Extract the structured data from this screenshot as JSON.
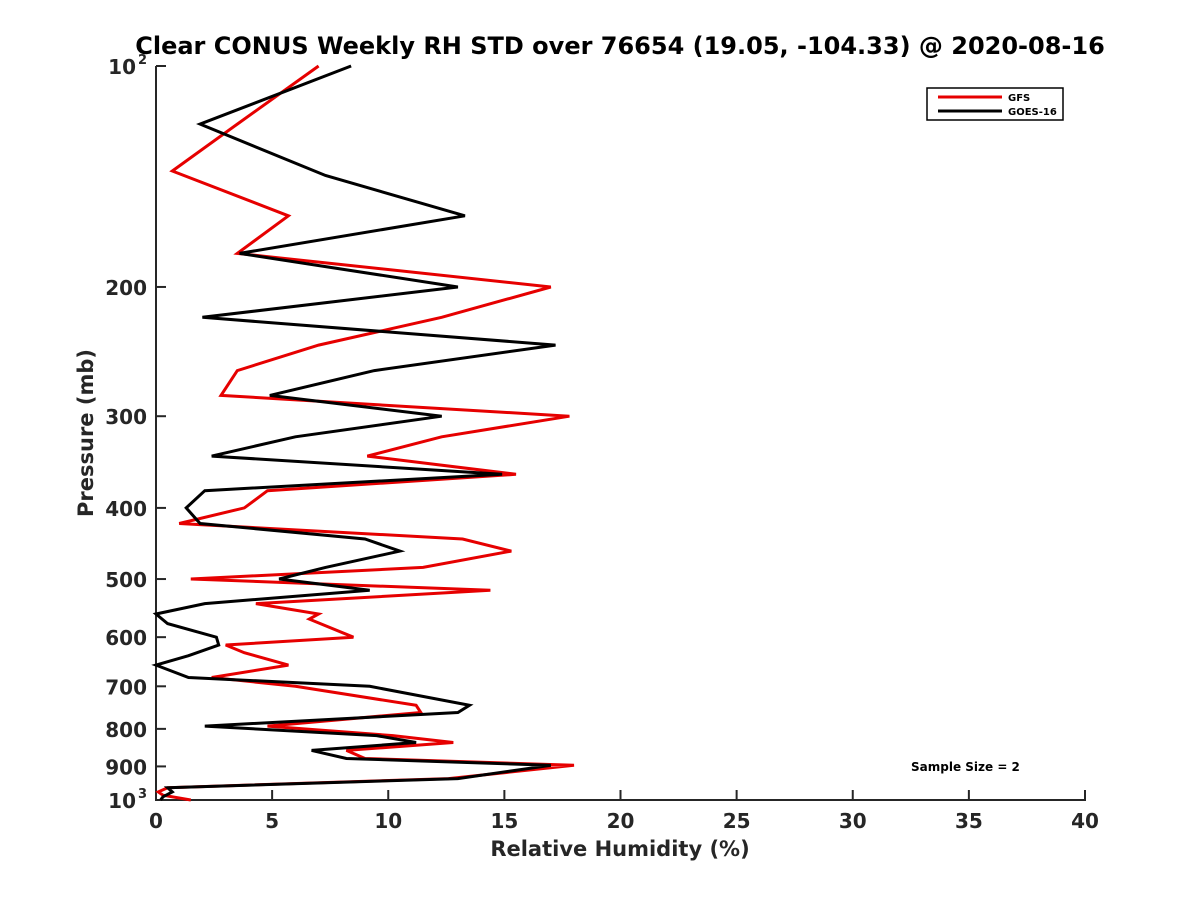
{
  "chart_data": {
    "type": "line",
    "title": "Clear CONUS Weekly RH STD over 76654 (19.05, -104.33) @ 2020-08-16",
    "xlabel": "Relative Humidity (%)",
    "ylabel": "Pressure (mb)",
    "xlim": [
      0,
      40
    ],
    "ylim": [
      100,
      1000
    ],
    "yscale": "log",
    "yreversed": true,
    "grid": false,
    "legend_position": "top-right",
    "x_ticks": [
      0,
      5,
      10,
      15,
      20,
      25,
      30,
      35,
      40
    ],
    "x_tick_labels": [
      "0",
      "5",
      "10",
      "15",
      "20",
      "25",
      "30",
      "35",
      "40"
    ],
    "y_ticks": [
      100,
      200,
      300,
      400,
      500,
      600,
      700,
      800,
      900,
      1000
    ],
    "y_tick_labels": [
      {
        "base": "10",
        "exp": "2"
      },
      {
        "base": "200",
        "exp": ""
      },
      {
        "base": "300",
        "exp": ""
      },
      {
        "base": "400",
        "exp": ""
      },
      {
        "base": "500",
        "exp": ""
      },
      {
        "base": "600",
        "exp": ""
      },
      {
        "base": "700",
        "exp": ""
      },
      {
        "base": "800",
        "exp": ""
      },
      {
        "base": "900",
        "exp": ""
      },
      {
        "base": "10",
        "exp": "3"
      }
    ],
    "annotation": "Sample Size = 2",
    "series": [
      {
        "name": "GFS",
        "color": "#e60000",
        "points": [
          [
            7.0,
            100
          ],
          [
            3.5,
            120
          ],
          [
            0.7,
            139
          ],
          [
            5.7,
            160
          ],
          [
            3.5,
            180
          ],
          [
            17.0,
            200
          ],
          [
            12.3,
            220
          ],
          [
            7.0,
            240
          ],
          [
            3.5,
            260
          ],
          [
            2.8,
            281
          ],
          [
            17.8,
            300
          ],
          [
            12.3,
            320
          ],
          [
            9.1,
            340
          ],
          [
            15.5,
            360
          ],
          [
            4.8,
            379
          ],
          [
            3.8,
            400
          ],
          [
            1.0,
            420
          ],
          [
            13.2,
            441
          ],
          [
            15.3,
            458
          ],
          [
            11.5,
            482
          ],
          [
            1.5,
            500
          ],
          [
            14.4,
            518
          ],
          [
            4.3,
            540
          ],
          [
            7.0,
            558
          ],
          [
            6.6,
            567
          ],
          [
            8.5,
            600
          ],
          [
            3.0,
            615
          ],
          [
            3.8,
            630
          ],
          [
            5.7,
            655
          ],
          [
            2.4,
            681
          ],
          [
            6.0,
            700
          ],
          [
            11.2,
            743
          ],
          [
            11.4,
            760
          ],
          [
            4.8,
            793
          ],
          [
            10.2,
            817
          ],
          [
            12.8,
            835
          ],
          [
            8.2,
            856
          ],
          [
            9.0,
            878
          ],
          [
            18.0,
            897
          ],
          [
            12.6,
            935
          ],
          [
            0.5,
            962
          ],
          [
            0.1,
            975
          ],
          [
            0.3,
            985
          ],
          [
            1.5,
            1000
          ]
        ]
      },
      {
        "name": "GOES-16",
        "color": "#000000",
        "points": [
          [
            8.4,
            100
          ],
          [
            1.9,
            120
          ],
          [
            7.3,
            141
          ],
          [
            13.3,
            160
          ],
          [
            3.6,
            180
          ],
          [
            13.0,
            200
          ],
          [
            2.0,
            220
          ],
          [
            17.2,
            240
          ],
          [
            9.4,
            260
          ],
          [
            4.9,
            281
          ],
          [
            12.3,
            300
          ],
          [
            6.0,
            320
          ],
          [
            2.4,
            340
          ],
          [
            14.9,
            360
          ],
          [
            2.1,
            379
          ],
          [
            1.3,
            400
          ],
          [
            1.9,
            420
          ],
          [
            9.0,
            441
          ],
          [
            10.5,
            458
          ],
          [
            7.3,
            482
          ],
          [
            5.3,
            500
          ],
          [
            9.2,
            518
          ],
          [
            2.1,
            540
          ],
          [
            0.0,
            558
          ],
          [
            0.5,
            575
          ],
          [
            2.6,
            600
          ],
          [
            2.7,
            615
          ],
          [
            1.4,
            636
          ],
          [
            0.0,
            655
          ],
          [
            1.4,
            681
          ],
          [
            9.2,
            700
          ],
          [
            13.5,
            743
          ],
          [
            13.0,
            760
          ],
          [
            2.1,
            793
          ],
          [
            9.5,
            817
          ],
          [
            11.2,
            835
          ],
          [
            6.7,
            856
          ],
          [
            8.2,
            878
          ],
          [
            17.0,
            897
          ],
          [
            13.0,
            935
          ],
          [
            0.5,
            962
          ],
          [
            0.7,
            975
          ],
          [
            0.3,
            990
          ],
          [
            0.2,
            1000
          ]
        ]
      }
    ]
  }
}
